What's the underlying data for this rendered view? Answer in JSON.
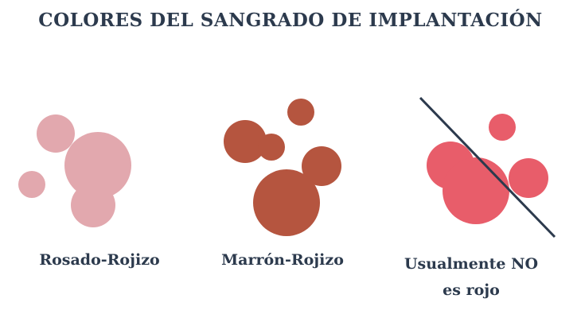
{
  "header": {
    "title": "COLORES DEL SANGRADO DE IMPLANTACIÓN"
  },
  "items": [
    {
      "lines": [
        "Rosado-Rojizo"
      ]
    },
    {
      "lines": [
        "Marrón-Rojizo"
      ]
    },
    {
      "lines": [
        "Usualmente NO",
        "es rojo"
      ]
    }
  ]
}
